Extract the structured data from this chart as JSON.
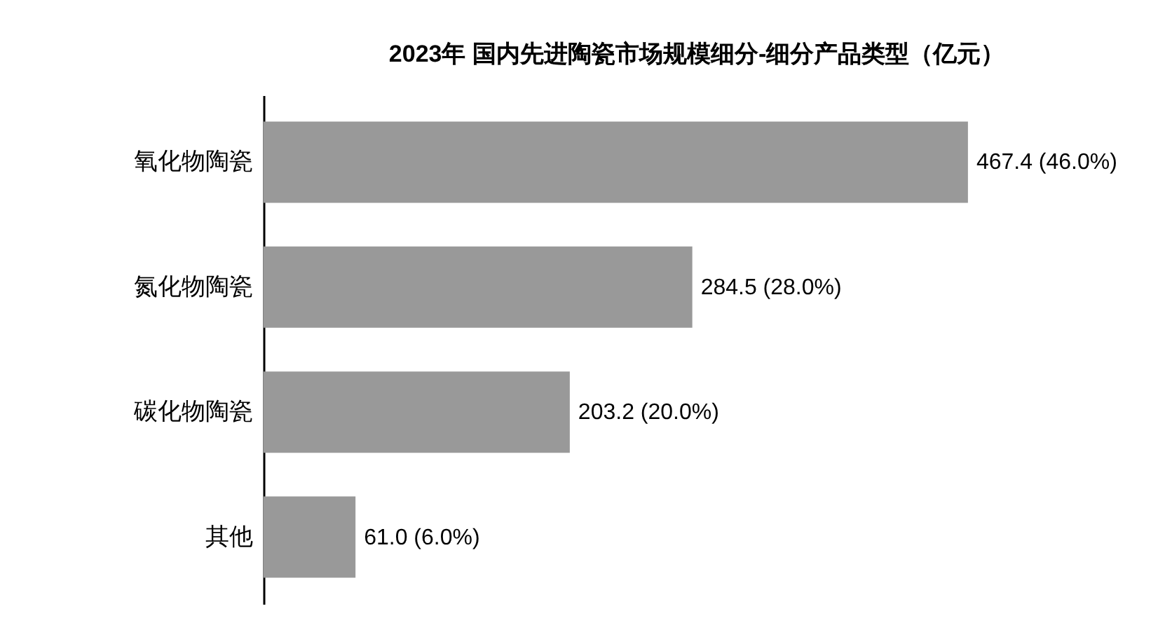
{
  "chart_data": {
    "type": "bar",
    "orientation": "horizontal",
    "title": "2023年 国内先进陶瓷市场规模细分-细分产品类型（亿元）",
    "categories": [
      "氧化物陶瓷",
      "氮化物陶瓷",
      "碳化物陶瓷",
      "其他"
    ],
    "values": [
      467.4,
      284.5,
      203.2,
      61.0
    ],
    "value_labels": [
      "467.4 (46.0%)",
      "284.5 (28.0%)",
      "203.2 (20.0%)",
      "61.0 (6.0%)"
    ],
    "color": "#999999",
    "tick_labels": "y"
  }
}
